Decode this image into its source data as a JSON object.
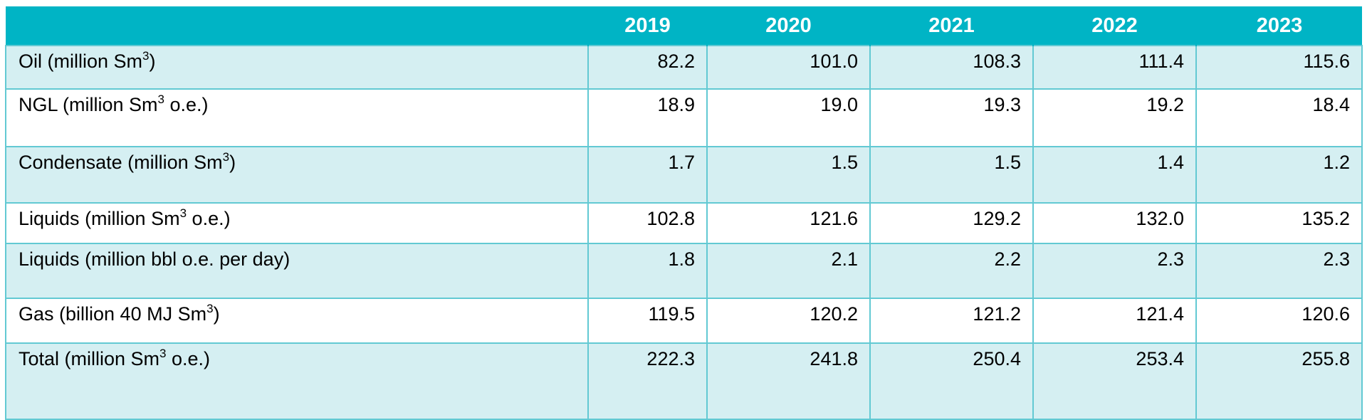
{
  "table": {
    "header": {
      "corner": "",
      "years": [
        "2019",
        "2020",
        "2021",
        "2022",
        "2023"
      ]
    },
    "rows": [
      {
        "label_pre": "Oil (million Sm",
        "sup": "3",
        "label_post": ")",
        "values": [
          "82.2",
          "101.0",
          "108.3",
          "111.4",
          "115.6"
        ]
      },
      {
        "label_pre": "NGL (million Sm",
        "sup": "3",
        "label_post": " o.e.)",
        "values": [
          "18.9",
          "19.0",
          "19.3",
          "19.2",
          "18.4"
        ]
      },
      {
        "label_pre": "Condensate (million Sm",
        "sup": "3",
        "label_post": ")",
        "values": [
          "1.7",
          "1.5",
          "1.5",
          "1.4",
          "1.2"
        ]
      },
      {
        "label_pre": "Liquids (million Sm",
        "sup": "3",
        "label_post": " o.e.)",
        "values": [
          "102.8",
          "121.6",
          "129.2",
          "132.0",
          "135.2"
        ]
      },
      {
        "label_pre": "Liquids (million bbl o.e. per day)",
        "sup": "",
        "label_post": "",
        "values": [
          "1.8",
          "2.1",
          "2.2",
          "2.3",
          "2.3"
        ]
      },
      {
        "label_pre": "Gas (billion 40 MJ Sm",
        "sup": "3",
        "label_post": ")",
        "values": [
          "119.5",
          "120.2",
          "121.2",
          "121.4",
          "120.6"
        ]
      },
      {
        "label_pre": "Total (million Sm",
        "sup": "3",
        "label_post": " o.e.)",
        "values": [
          "222.3",
          "241.8",
          "250.4",
          "253.4",
          "255.8"
        ]
      }
    ]
  },
  "colors": {
    "header_bg": "#00b4c5",
    "header_text": "#ffffff",
    "row_shade": "#d5eff2",
    "row_plain": "#ffffff",
    "grid": "#62c9d3"
  }
}
